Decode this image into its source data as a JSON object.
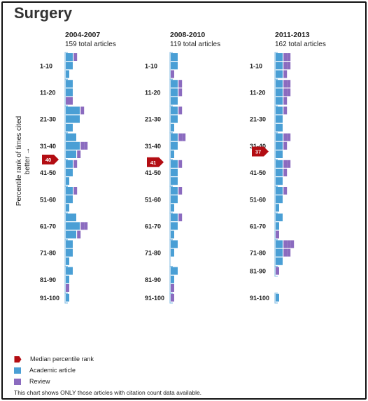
{
  "title": "Surgery",
  "colors": {
    "academic": "#4a9fd5",
    "review": "#8b6bbf",
    "median": "#b30d13",
    "bracket": "#8fc3e6"
  },
  "legend": {
    "median_label": "Median percentile rank",
    "academic_label": "Academic article",
    "review_label": "Review"
  },
  "footnote": "This chart shows ONLY those articles with citation count data available.",
  "chart_data": {
    "type": "bar",
    "ylabel": "Percentile rank of times cited better →",
    "categories": [
      "1-10",
      "11-20",
      "21-30",
      "31-40",
      "41-50",
      "51-60",
      "61-70",
      "71-80",
      "81-90",
      "91-100"
    ],
    "unit_note": "bar values in boxes (approximate article counts per row)",
    "panels": [
      {
        "period": "2004-2007",
        "total": "159 total articles",
        "median": 40,
        "rows": [
          [
            [
              2,
              1
            ],
            [
              2,
              0
            ],
            [
              1,
              0
            ]
          ],
          [
            [
              2,
              0
            ],
            [
              2,
              0
            ],
            [
              0,
              2
            ]
          ],
          [
            [
              4,
              1
            ],
            [
              4,
              0
            ],
            [
              2,
              0
            ]
          ],
          [
            [
              3,
              0
            ],
            [
              4,
              2
            ],
            [
              3,
              1
            ]
          ],
          [
            [
              2,
              1
            ],
            [
              2,
              0
            ],
            [
              1,
              0
            ]
          ],
          [
            [
              2,
              1
            ],
            [
              2,
              0
            ],
            [
              1,
              0
            ]
          ],
          [
            [
              3,
              0
            ],
            [
              4,
              2
            ],
            [
              3,
              1
            ]
          ],
          [
            [
              2,
              0
            ],
            [
              2,
              0
            ],
            [
              1,
              0
            ]
          ],
          [
            [
              2,
              0
            ],
            [
              1,
              0
            ],
            [
              0,
              1
            ]
          ],
          [
            [
              1,
              0
            ]
          ]
        ]
      },
      {
        "period": "2008-2010",
        "total": "119 total articles",
        "median": 41,
        "rows": [
          [
            [
              2,
              0
            ],
            [
              2,
              0
            ],
            [
              0,
              1
            ]
          ],
          [
            [
              2,
              1
            ],
            [
              2,
              1
            ],
            [
              2,
              0
            ]
          ],
          [
            [
              2,
              1
            ],
            [
              2,
              0
            ],
            [
              1,
              0
            ]
          ],
          [
            [
              2,
              2
            ],
            [
              2,
              0
            ],
            [
              1,
              0
            ]
          ],
          [
            [
              2,
              1
            ],
            [
              2,
              0
            ],
            [
              2,
              0
            ]
          ],
          [
            [
              2,
              1
            ],
            [
              2,
              0
            ],
            [
              1,
              0
            ]
          ],
          [
            [
              2,
              1
            ],
            [
              2,
              0
            ],
            [
              1,
              0
            ]
          ],
          [
            [
              2,
              0
            ],
            [
              1,
              0
            ],
            [
              0,
              0
            ]
          ],
          [
            [
              2,
              0
            ],
            [
              1,
              0
            ],
            [
              0,
              1
            ]
          ],
          [
            [
              0,
              1
            ]
          ]
        ]
      },
      {
        "period": "2011-2013",
        "total": "162 total articles",
        "median": 37,
        "rows": [
          [
            [
              2,
              2
            ],
            [
              2,
              2
            ],
            [
              2,
              1
            ]
          ],
          [
            [
              2,
              2
            ],
            [
              2,
              2
            ],
            [
              2,
              1
            ]
          ],
          [
            [
              2,
              1
            ],
            [
              2,
              0
            ],
            [
              2,
              0
            ]
          ],
          [
            [
              2,
              2
            ],
            [
              2,
              1
            ],
            [
              2,
              0
            ]
          ],
          [
            [
              2,
              2
            ],
            [
              2,
              1
            ],
            [
              2,
              0
            ]
          ],
          [
            [
              2,
              1
            ],
            [
              2,
              0
            ],
            [
              1,
              0
            ]
          ],
          [
            [
              2,
              0
            ],
            [
              1,
              0
            ],
            [
              0,
              1
            ]
          ],
          [
            [
              2,
              3
            ],
            [
              2,
              2
            ],
            [
              2,
              0
            ]
          ],
          [
            [
              0,
              1
            ]
          ],
          [
            [
              1,
              0
            ]
          ]
        ]
      }
    ]
  }
}
